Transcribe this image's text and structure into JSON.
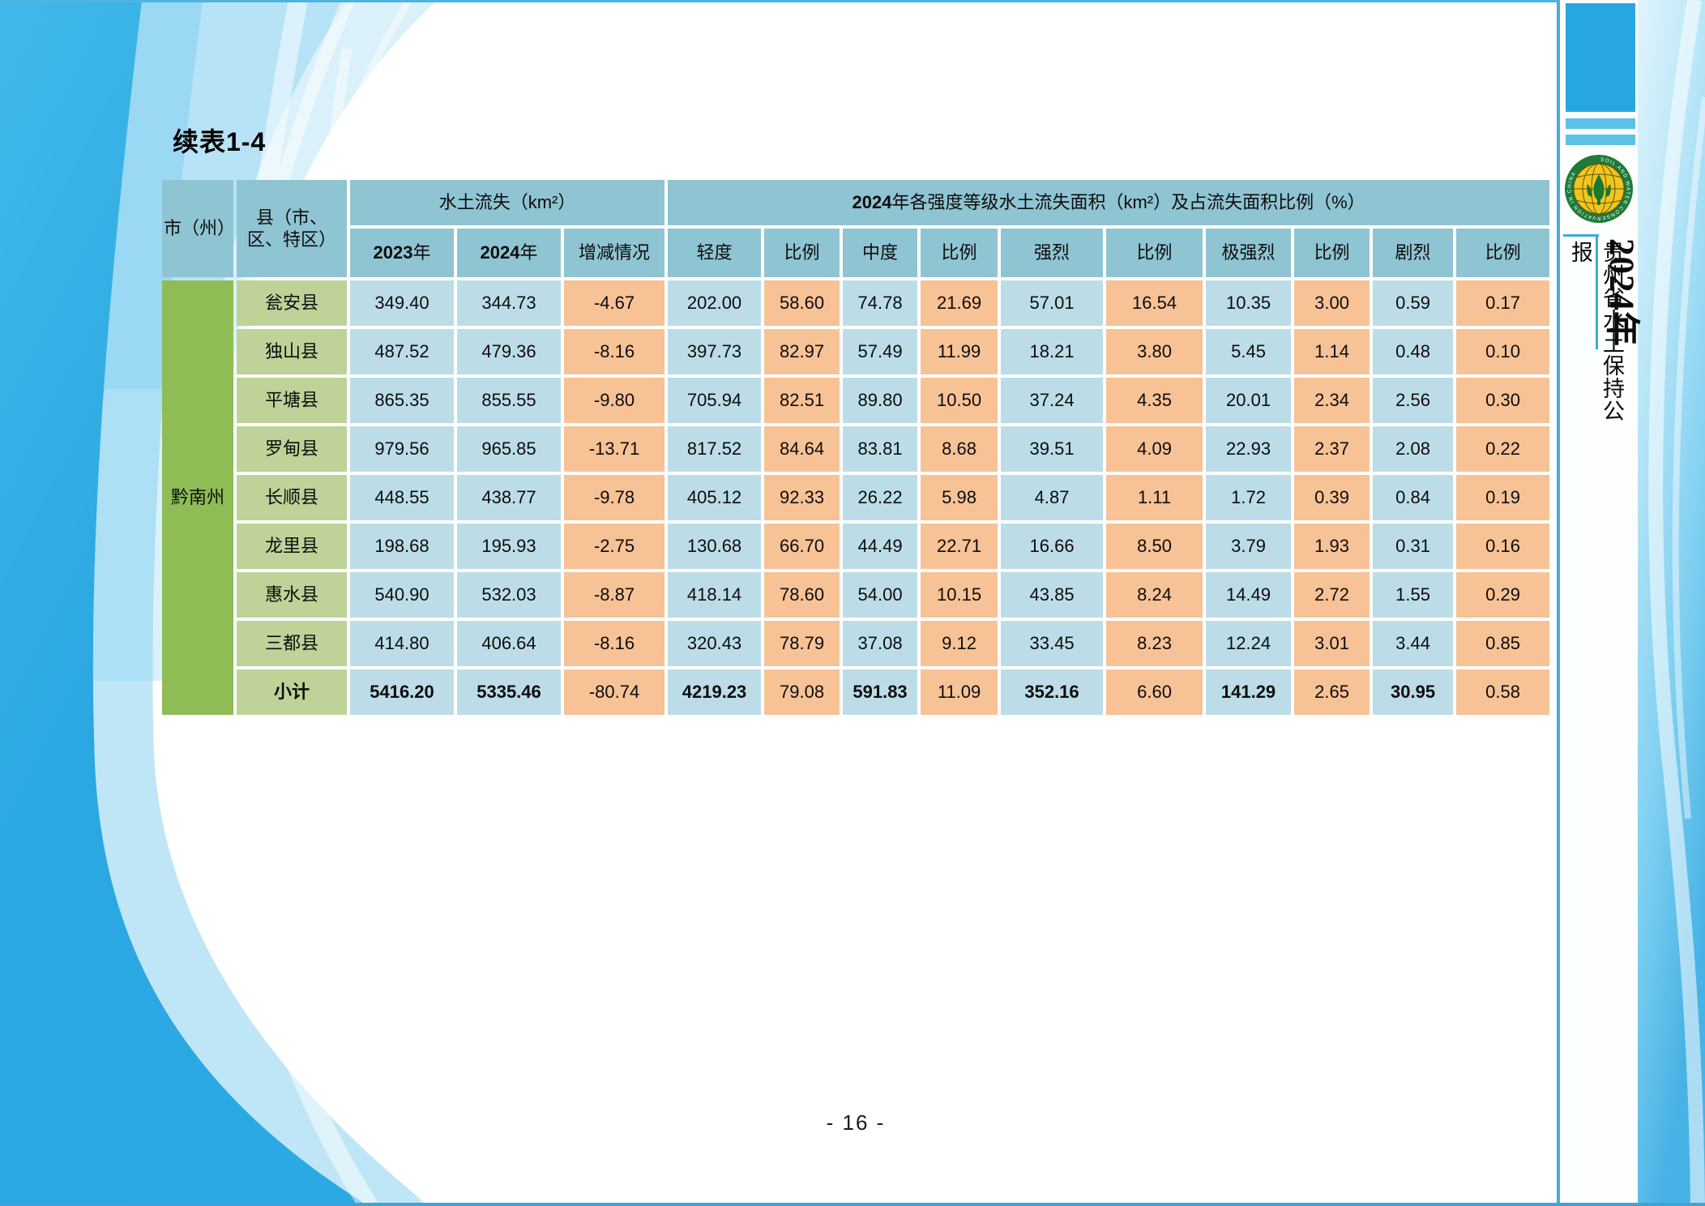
{
  "page": {
    "title": "续表1-4",
    "page_number": "- 16 -"
  },
  "table": {
    "header": {
      "city": "市（州）",
      "county_line1": "县（市、",
      "county_line2": "区、特区）",
      "erosion_group": "水土流失（km²）",
      "intensity_group_year": "2024",
      "intensity_group_rest": "年各强度等级水土流失面积（km²）及占流失面积比例（%）",
      "year_2023": "2023",
      "year_2023_suffix": "年",
      "year_2024": "2024",
      "year_2024_suffix": "年",
      "change": "增减情况",
      "intensity_columns": [
        "轻度",
        "比例",
        "中度",
        "比例",
        "强烈",
        "比例",
        "极强烈",
        "比例",
        "剧烈",
        "比例"
      ]
    },
    "region": "黔南州",
    "rows": [
      {
        "county": "瓮安县",
        "values": [
          "349.40",
          "344.73",
          "-4.67",
          "202.00",
          "58.60",
          "74.78",
          "21.69",
          "57.01",
          "16.54",
          "10.35",
          "3.00",
          "0.59",
          "0.17"
        ]
      },
      {
        "county": "独山县",
        "values": [
          "487.52",
          "479.36",
          "-8.16",
          "397.73",
          "82.97",
          "57.49",
          "11.99",
          "18.21",
          "3.80",
          "5.45",
          "1.14",
          "0.48",
          "0.10"
        ]
      },
      {
        "county": "平塘县",
        "values": [
          "865.35",
          "855.55",
          "-9.80",
          "705.94",
          "82.51",
          "89.80",
          "10.50",
          "37.24",
          "4.35",
          "20.01",
          "2.34",
          "2.56",
          "0.30"
        ]
      },
      {
        "county": "罗甸县",
        "values": [
          "979.56",
          "965.85",
          "-13.71",
          "817.52",
          "84.64",
          "83.81",
          "8.68",
          "39.51",
          "4.09",
          "22.93",
          "2.37",
          "2.08",
          "0.22"
        ]
      },
      {
        "county": "长顺县",
        "values": [
          "448.55",
          "438.77",
          "-9.78",
          "405.12",
          "92.33",
          "26.22",
          "5.98",
          "4.87",
          "1.11",
          "1.72",
          "0.39",
          "0.84",
          "0.19"
        ]
      },
      {
        "county": "龙里县",
        "values": [
          "198.68",
          "195.93",
          "-2.75",
          "130.68",
          "66.70",
          "44.49",
          "22.71",
          "16.66",
          "8.50",
          "3.79",
          "1.93",
          "0.31",
          "0.16"
        ]
      },
      {
        "county": "惠水县",
        "values": [
          "540.90",
          "532.03",
          "-8.87",
          "418.14",
          "78.60",
          "54.00",
          "10.15",
          "43.85",
          "8.24",
          "14.49",
          "2.72",
          "1.55",
          "0.29"
        ]
      },
      {
        "county": "三都县",
        "values": [
          "414.80",
          "406.64",
          "-8.16",
          "320.43",
          "78.79",
          "37.08",
          "9.12",
          "33.45",
          "8.23",
          "12.24",
          "3.01",
          "3.44",
          "0.85"
        ]
      },
      {
        "county": "小计",
        "subtotal": true,
        "values": [
          "5416.20",
          "5335.46",
          "-80.74",
          "4219.23",
          "79.08",
          "591.83",
          "11.09",
          "352.16",
          "6.60",
          "141.29",
          "2.65",
          "30.95",
          "0.58"
        ]
      }
    ]
  },
  "sidebar": {
    "year_label": "2024年",
    "bulletin_title": "贵州省水土保持公报",
    "logo_ring_text": "SOIL AND WATER CONSERVATION IN CHINA"
  },
  "colors": {
    "header_teal": "#8FC4D2",
    "region_green": "#8FBC55",
    "county_green": "#BFD298",
    "area_blue": "#BCDDE7",
    "ratio_orange": "#F7C295",
    "accent_blue": "#27A7E0"
  }
}
